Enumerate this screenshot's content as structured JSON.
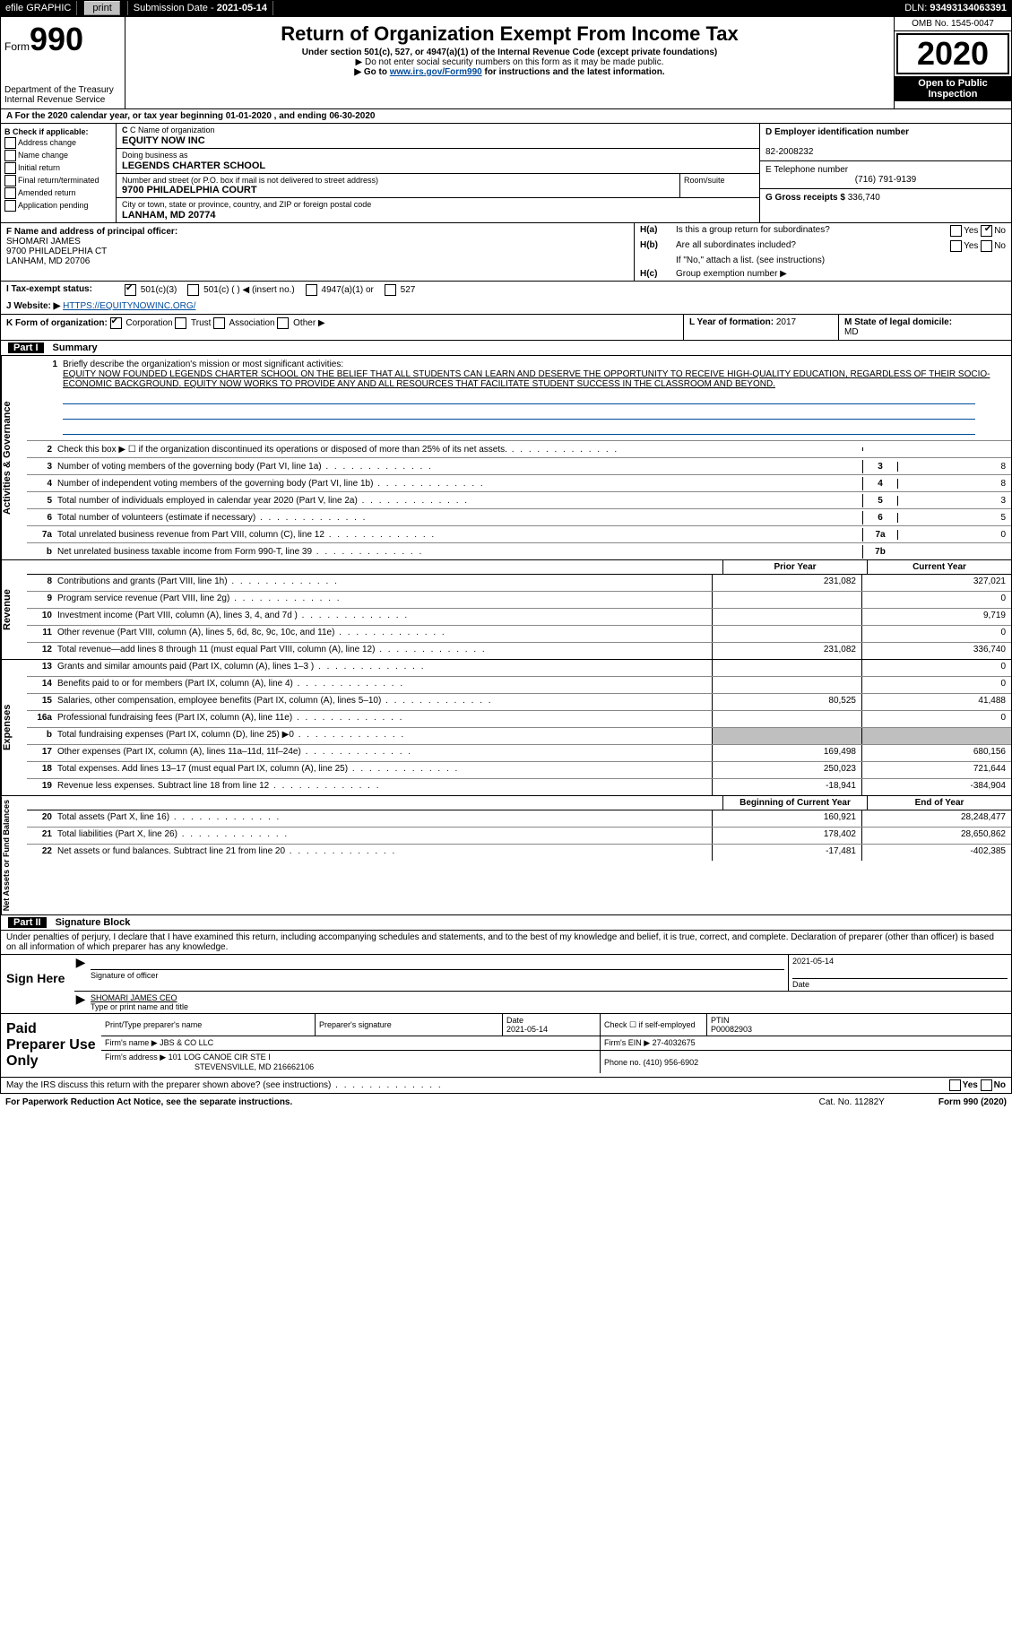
{
  "top_bar": {
    "efile": "efile GRAPHIC",
    "print": "print",
    "sub_label": "Submission Date - ",
    "sub_date": "2021-05-14",
    "dln_label": "DLN: ",
    "dln": "93493134063391"
  },
  "header": {
    "form_label": "Form",
    "form_num": "990",
    "dept1": "Department of the Treasury",
    "dept2": "Internal Revenue Service",
    "title": "Return of Organization Exempt From Income Tax",
    "sub1": "Under section 501(c), 527, or 4947(a)(1) of the Internal Revenue Code (except private foundations)",
    "sub2": "▶ Do not enter social security numbers on this form as it may be made public.",
    "sub3a": "▶ Go to ",
    "sub3link": "www.irs.gov/Form990",
    "sub3b": " for instructions and the latest information.",
    "omb": "OMB No. 1545-0047",
    "year": "2020",
    "open1": "Open to Public",
    "open2": "Inspection"
  },
  "row_a": "A For the 2020 calendar year, or tax year beginning 01-01-2020    , and ending 06-30-2020",
  "box_b": {
    "title": "B Check if applicable:",
    "items": [
      "Address change",
      "Name change",
      "Initial return",
      "Final return/terminated",
      "Amended return",
      "Application pending"
    ]
  },
  "box_c": {
    "name_label": "C Name of organization",
    "name": "EQUITY NOW INC",
    "dba_label": "Doing business as",
    "dba": "LEGENDS CHARTER SCHOOL",
    "street_label": "Number and street (or P.O. box if mail is not delivered to street address)",
    "room_label": "Room/suite",
    "street": "9700 PHILADELPHIA COURT",
    "city_label": "City or town, state or province, country, and ZIP or foreign postal code",
    "city": "LANHAM, MD  20774"
  },
  "box_d": {
    "label": "D Employer identification number",
    "value": "82-2008232"
  },
  "box_e": {
    "label": "E Telephone number",
    "value": "(716) 791-9139"
  },
  "box_g": {
    "label": "G Gross receipts $ ",
    "value": "336,740"
  },
  "box_f": {
    "label": "F  Name and address of principal officer:",
    "l1": "SHOMARI JAMES",
    "l2": "9700 PHILADELPHIA CT",
    "l3": "LANHAM, MD  20706"
  },
  "box_h": {
    "a_label": "H(a)",
    "a_text": "Is this a group return for subordinates?",
    "a_no_checked": true,
    "b_label": "H(b)",
    "b_text": "Are all subordinates included?",
    "b_note": "If \"No,\" attach a list. (see instructions)",
    "c_label": "H(c)",
    "c_text": "Group exemption number ▶"
  },
  "row_i": {
    "label": "I  Tax-exempt status:",
    "opt1": "501(c)(3)",
    "opt2": "501(c) (  ) ◀ (insert no.)",
    "opt3": "4947(a)(1) or",
    "opt4": "527"
  },
  "row_j": {
    "label": "J  Website: ▶ ",
    "value": "HTTPS://EQUITYNOWINC.ORG/"
  },
  "row_k": {
    "label": "K Form of organization:",
    "opts": [
      "Corporation",
      "Trust",
      "Association",
      "Other ▶"
    ],
    "l_label": "L Year of formation: ",
    "l_val": "2017",
    "m_label": "M State of legal domicile: ",
    "m_val": "MD"
  },
  "part1": {
    "num": "Part I",
    "title": "Summary"
  },
  "mission": {
    "num": "1",
    "lead": "Briefly describe the organization's mission or most significant activities:",
    "text": "EQUITY NOW FOUNDED LEGENDS CHARTER SCHOOL ON THE BELIEF THAT ALL STUDENTS CAN LEARN AND DESERVE THE OPPORTUNITY TO RECEIVE HIGH-QUALITY EDUCATION, REGARDLESS OF THEIR SOCIO-ECONOMIC BACKGROUND. EQUITY NOW WORKS TO PROVIDE ANY AND ALL RESOURCES THAT FACILITATE STUDENT SUCCESS IN THE CLASSROOM AND BEYOND."
  },
  "gov_rows": [
    {
      "n": "2",
      "t": "Check this box ▶ ☐  if the organization discontinued its operations or disposed of more than 25% of its net assets.",
      "box": "",
      "val": ""
    },
    {
      "n": "3",
      "t": "Number of voting members of the governing body (Part VI, line 1a)",
      "box": "3",
      "val": "8"
    },
    {
      "n": "4",
      "t": "Number of independent voting members of the governing body (Part VI, line 1b)",
      "box": "4",
      "val": "8"
    },
    {
      "n": "5",
      "t": "Total number of individuals employed in calendar year 2020 (Part V, line 2a)",
      "box": "5",
      "val": "3"
    },
    {
      "n": "6",
      "t": "Total number of volunteers (estimate if necessary)",
      "box": "6",
      "val": "5"
    },
    {
      "n": "7a",
      "t": "Total unrelated business revenue from Part VIII, column (C), line 12",
      "box": "7a",
      "val": "0"
    },
    {
      "n": "b",
      "t": "Net unrelated business taxable income from Form 990-T, line 39",
      "box": "7b",
      "val": ""
    }
  ],
  "col_heads": {
    "prior": "Prior Year",
    "current": "Current Year"
  },
  "revenue": [
    {
      "n": "8",
      "t": "Contributions and grants (Part VIII, line 1h)",
      "c1": "231,082",
      "c2": "327,021"
    },
    {
      "n": "9",
      "t": "Program service revenue (Part VIII, line 2g)",
      "c1": "",
      "c2": "0"
    },
    {
      "n": "10",
      "t": "Investment income (Part VIII, column (A), lines 3, 4, and 7d )",
      "c1": "",
      "c2": "9,719"
    },
    {
      "n": "11",
      "t": "Other revenue (Part VIII, column (A), lines 5, 6d, 8c, 9c, 10c, and 11e)",
      "c1": "",
      "c2": "0"
    },
    {
      "n": "12",
      "t": "Total revenue—add lines 8 through 11 (must equal Part VIII, column (A), line 12)",
      "c1": "231,082",
      "c2": "336,740"
    }
  ],
  "expenses": [
    {
      "n": "13",
      "t": "Grants and similar amounts paid (Part IX, column (A), lines 1–3 )",
      "c1": "",
      "c2": "0"
    },
    {
      "n": "14",
      "t": "Benefits paid to or for members (Part IX, column (A), line 4)",
      "c1": "",
      "c2": "0"
    },
    {
      "n": "15",
      "t": "Salaries, other compensation, employee benefits (Part IX, column (A), lines 5–10)",
      "c1": "80,525",
      "c2": "41,488"
    },
    {
      "n": "16a",
      "t": "Professional fundraising fees (Part IX, column (A), line 11e)",
      "c1": "",
      "c2": "0"
    },
    {
      "n": "b",
      "t": "Total fundraising expenses (Part IX, column (D), line 25) ▶0",
      "c1": "",
      "c2": "",
      "shade": true
    },
    {
      "n": "17",
      "t": "Other expenses (Part IX, column (A), lines 11a–11d, 11f–24e)",
      "c1": "169,498",
      "c2": "680,156"
    },
    {
      "n": "18",
      "t": "Total expenses. Add lines 13–17 (must equal Part IX, column (A), line 25)",
      "c1": "250,023",
      "c2": "721,644"
    },
    {
      "n": "19",
      "t": "Revenue less expenses. Subtract line 18 from line 12",
      "c1": "-18,941",
      "c2": "-384,904"
    }
  ],
  "net_heads": {
    "c1": "Beginning of Current Year",
    "c2": "End of Year"
  },
  "net": [
    {
      "n": "20",
      "t": "Total assets (Part X, line 16)",
      "c1": "160,921",
      "c2": "28,248,477"
    },
    {
      "n": "21",
      "t": "Total liabilities (Part X, line 26)",
      "c1": "178,402",
      "c2": "28,650,862"
    },
    {
      "n": "22",
      "t": "Net assets or fund balances. Subtract line 21 from line 20",
      "c1": "-17,481",
      "c2": "-402,385"
    }
  ],
  "part2": {
    "num": "Part II",
    "title": "Signature Block"
  },
  "decl": "Under penalties of perjury, I declare that I have examined this return, including accompanying schedules and statements, and to the best of my knowledge and belief, it is true, correct, and complete. Declaration of preparer (other than officer) is based on all information of which preparer has any knowledge.",
  "sign": {
    "label": "Sign Here",
    "sig_label": "Signature of officer",
    "date_label": "Date",
    "date": "2021-05-14",
    "name": "SHOMARI JAMES CEO",
    "name_label": "Type or print name and title"
  },
  "prep": {
    "label": "Paid Preparer Use Only",
    "h1": "Print/Type preparer's name",
    "h2": "Preparer's signature",
    "h3": "Date",
    "h3v": "2021-05-14",
    "h4": "Check ☐ if self-employed",
    "h5": "PTIN",
    "h5v": "P00082903",
    "firm_label": "Firm's name   ▶ ",
    "firm": "JBS & CO LLC",
    "ein_label": "Firm's EIN ▶ ",
    "ein": "27-4032675",
    "addr_label": "Firm's address ▶ ",
    "addr1": "101 LOG CANOE CIR STE I",
    "addr2": "STEVENSVILLE, MD  216662106",
    "phone_label": "Phone no. ",
    "phone": "(410) 956-6902"
  },
  "discuss": "May the IRS discuss this return with the preparer shown above? (see instructions)",
  "footer": {
    "l": "For Paperwork Reduction Act Notice, see the separate instructions.",
    "m": "Cat. No. 11282Y",
    "r": "Form 990 (2020)"
  },
  "vlabels": {
    "gov": "Activities & Governance",
    "rev": "Revenue",
    "exp": "Expenses",
    "net": "Net Assets or Fund Balances"
  }
}
